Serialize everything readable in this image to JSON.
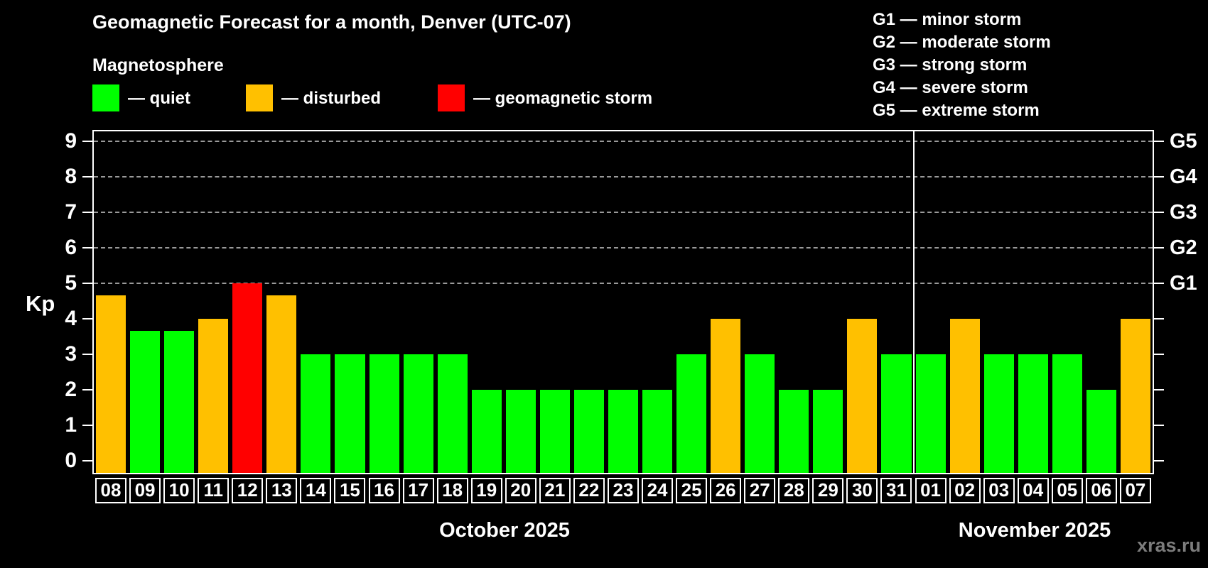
{
  "title": "Geomagnetic Forecast for a month, Denver (UTC-07)",
  "legend": {
    "title": "Magnetosphere",
    "items": [
      {
        "key": "quiet",
        "label": "— quiet",
        "color": "#00ff00"
      },
      {
        "key": "disturbed",
        "label": "— disturbed",
        "color": "#ffc000"
      },
      {
        "key": "storm",
        "label": "— geomagnetic storm",
        "color": "#ff0000"
      }
    ]
  },
  "g_scale_legend": [
    "G1 — minor storm",
    "G2 — moderate storm",
    "G3 — strong storm",
    "G4 — severe storm",
    "G5 — extreme storm"
  ],
  "watermark": "xras.ru",
  "chart_data": {
    "type": "bar",
    "title": "Geomagnetic Forecast for a month, Denver (UTC-07)",
    "ylabel": "Kp",
    "ylim": [
      0,
      9.7
    ],
    "yticks": [
      0,
      1,
      2,
      3,
      4,
      5,
      6,
      7,
      8,
      9
    ],
    "gridlines_kp": [
      5,
      6,
      7,
      8,
      9
    ],
    "grid": "dashed, horizontal, only at G-storm levels",
    "legend_position": "top-left and top-right",
    "colors": {
      "quiet": "#00ff00",
      "disturbed": "#ffc000",
      "storm": "#ff0000"
    },
    "g_levels": [
      {
        "label": "G1",
        "kp": 5
      },
      {
        "label": "G2",
        "kp": 6
      },
      {
        "label": "G3",
        "kp": 7
      },
      {
        "label": "G4",
        "kp": 8
      },
      {
        "label": "G5",
        "kp": 9
      }
    ],
    "months": [
      {
        "label": "October 2025",
        "days": 24
      },
      {
        "label": "November 2025",
        "days": 7
      }
    ],
    "categories": [
      "08",
      "09",
      "10",
      "11",
      "12",
      "13",
      "14",
      "15",
      "16",
      "17",
      "18",
      "19",
      "20",
      "21",
      "22",
      "23",
      "24",
      "25",
      "26",
      "27",
      "28",
      "29",
      "30",
      "31",
      "01",
      "02",
      "03",
      "04",
      "05",
      "06",
      "07"
    ],
    "values": [
      4.67,
      3.67,
      3.67,
      4,
      5,
      4.67,
      3,
      3,
      3,
      3,
      3,
      2,
      2,
      2,
      2,
      2,
      2,
      3,
      4,
      3,
      2,
      2,
      4,
      3,
      3,
      4,
      3,
      3,
      3,
      2,
      4
    ],
    "status": [
      "disturbed",
      "quiet",
      "quiet",
      "disturbed",
      "storm",
      "disturbed",
      "quiet",
      "quiet",
      "quiet",
      "quiet",
      "quiet",
      "quiet",
      "quiet",
      "quiet",
      "quiet",
      "quiet",
      "quiet",
      "quiet",
      "disturbed",
      "quiet",
      "quiet",
      "quiet",
      "disturbed",
      "quiet",
      "quiet",
      "disturbed",
      "quiet",
      "quiet",
      "quiet",
      "quiet",
      "disturbed"
    ]
  }
}
